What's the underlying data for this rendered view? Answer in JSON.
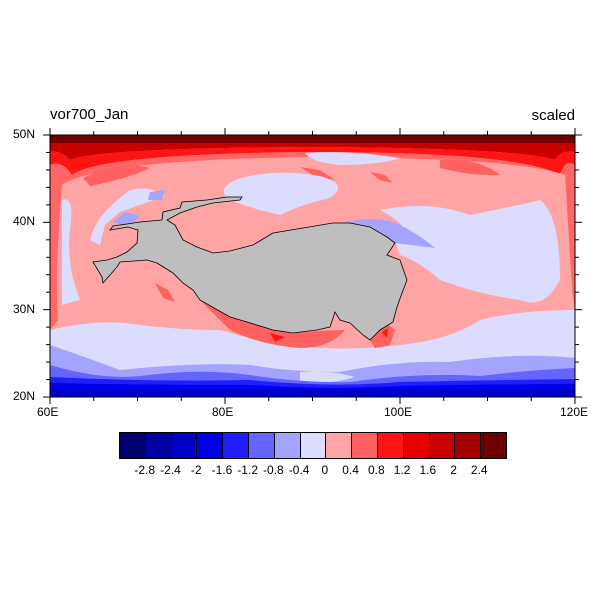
{
  "plot": {
    "left_title": "vor700_Jan",
    "right_title": "scaled",
    "x_ticks": [
      "60E",
      "80E",
      "100E",
      "120E"
    ],
    "y_ticks": [
      "20N",
      "30N",
      "40N",
      "50N"
    ],
    "lon_range": [
      60,
      120
    ],
    "lat_range": [
      20,
      50
    ],
    "land_color": "#bebebe"
  },
  "colorbar": {
    "colors": [
      "#00006e",
      "#0000a0",
      "#0000c8",
      "#0000e6",
      "#1e1eff",
      "#6464ff",
      "#a4a4ff",
      "#dcdcff",
      "#ffa4a4",
      "#ff6060",
      "#ff1414",
      "#e60000",
      "#c80000",
      "#a00000",
      "#700000"
    ],
    "labels": [
      "-2.8",
      "-2.4",
      "-2",
      "-1.6",
      "-1.2",
      "-0.8",
      "-0.4",
      "0",
      "0.4",
      "0.8",
      "1.2",
      "1.6",
      "2",
      "2.4"
    ]
  }
}
